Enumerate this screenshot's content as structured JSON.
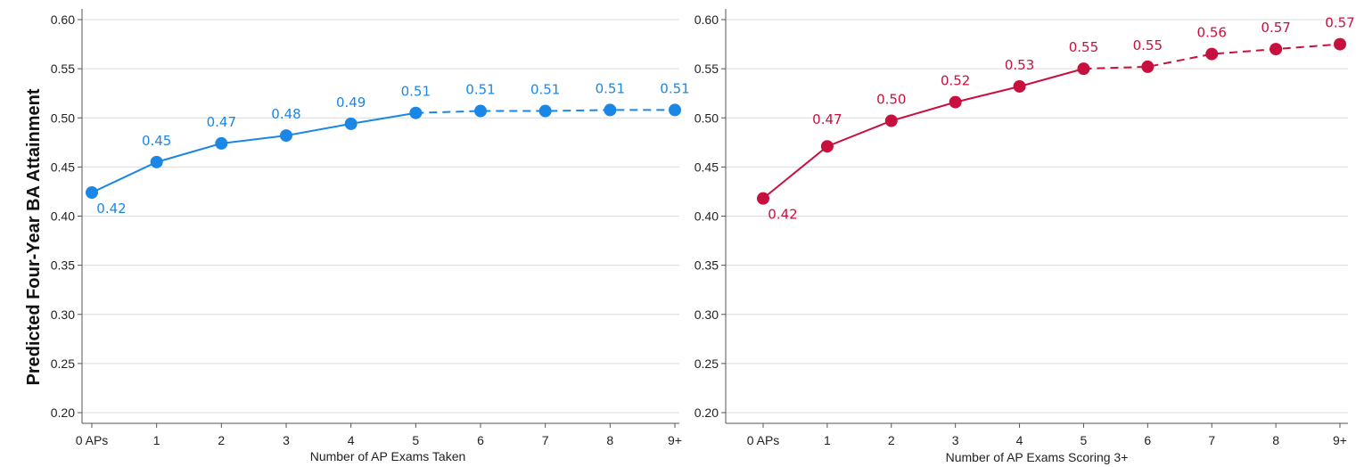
{
  "figure": {
    "ylabel": "Predicted Four-Year BA Attainment"
  },
  "chart_data": [
    {
      "type": "line",
      "title": "",
      "xlabel": "Number of AP Exams Taken",
      "ylabel": "Predicted Four-Year BA Attainment",
      "categories": [
        "0 APs",
        "1",
        "2",
        "3",
        "4",
        "5",
        "6",
        "7",
        "8",
        "9+"
      ],
      "ylim": [
        0.2,
        0.6
      ],
      "yticks": [
        "0.20",
        "0.25",
        "0.30",
        "0.35",
        "0.40",
        "0.45",
        "0.50",
        "0.55",
        "0.60"
      ],
      "grid": true,
      "color": "#1a87e6",
      "solid_through_index": 5,
      "series": [
        {
          "values": [
            0.424,
            0.455,
            0.474,
            0.482,
            0.494,
            0.505,
            0.507,
            0.507,
            0.508,
            0.508
          ],
          "labels": [
            "0.42",
            "0.45",
            "0.47",
            "0.48",
            "0.49",
            "0.51",
            "0.51",
            "0.51",
            "0.51",
            "0.51"
          ]
        }
      ]
    },
    {
      "type": "line",
      "title": "",
      "xlabel": "Number of AP Exams Scoring 3+",
      "ylabel": "Predicted Four-Year BA Attainment",
      "categories": [
        "0 APs",
        "1",
        "2",
        "3",
        "4",
        "5",
        "6",
        "7",
        "8",
        "9+"
      ],
      "ylim": [
        0.2,
        0.6
      ],
      "yticks": [
        "0.20",
        "0.25",
        "0.30",
        "0.35",
        "0.40",
        "0.45",
        "0.50",
        "0.55",
        "0.60"
      ],
      "grid": true,
      "color": "#c8103e",
      "solid_through_index": 5,
      "series": [
        {
          "values": [
            0.418,
            0.471,
            0.497,
            0.516,
            0.532,
            0.55,
            0.552,
            0.565,
            0.57,
            0.575
          ],
          "labels": [
            "0.42",
            "0.47",
            "0.50",
            "0.52",
            "0.53",
            "0.55",
            "0.55",
            "0.56",
            "0.57",
            "0.57"
          ]
        }
      ]
    }
  ]
}
